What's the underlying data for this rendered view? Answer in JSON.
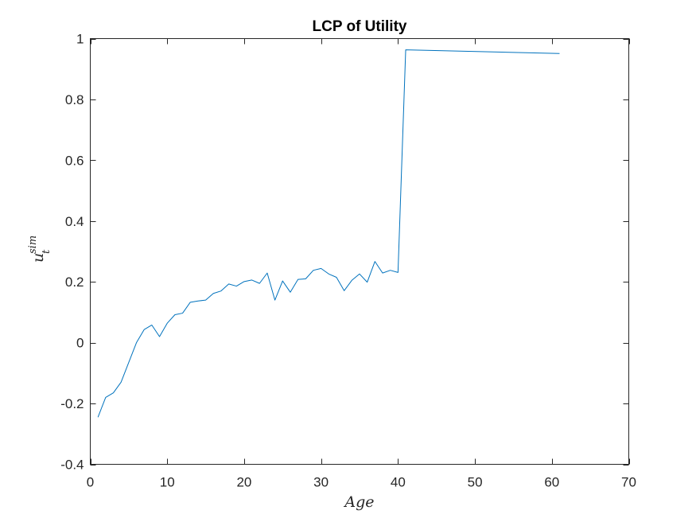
{
  "chart_data": {
    "type": "line",
    "title": "LCP of Utility",
    "xlabel": "Age",
    "ylabel": {
      "base": "u",
      "superscript": "sim",
      "subscript": "t"
    },
    "xlim": [
      0,
      70
    ],
    "ylim": [
      -0.4,
      1
    ],
    "xticks": [
      0,
      10,
      20,
      30,
      40,
      50,
      60,
      70
    ],
    "yticks": [
      -0.4,
      -0.2,
      0,
      0.2,
      0.4,
      0.6,
      0.8,
      1
    ],
    "xtick_labels": [
      "0",
      "10",
      "20",
      "30",
      "40",
      "50",
      "60",
      "70"
    ],
    "ytick_labels": [
      "-0.4",
      "-0.2",
      "0",
      "0.2",
      "0.4",
      "0.6",
      "0.8",
      "1"
    ],
    "grid": false,
    "legend": "none",
    "series": [
      {
        "color": "#0072BD",
        "x": [
          1,
          2,
          3,
          4,
          5,
          6,
          7,
          8,
          9,
          10,
          11,
          12,
          13,
          14,
          15,
          16,
          17,
          18,
          19,
          20,
          21,
          22,
          23,
          24,
          25,
          26,
          27,
          28,
          29,
          30,
          31,
          32,
          33,
          34,
          35,
          36,
          37,
          38,
          39,
          40,
          41,
          61
        ],
        "y": [
          -0.245,
          -0.18,
          -0.165,
          -0.13,
          -0.065,
          0.0,
          0.043,
          0.058,
          0.02,
          0.064,
          0.092,
          0.097,
          0.133,
          0.137,
          0.14,
          0.162,
          0.17,
          0.193,
          0.186,
          0.201,
          0.206,
          0.195,
          0.229,
          0.14,
          0.203,
          0.166,
          0.208,
          0.21,
          0.238,
          0.244,
          0.226,
          0.215,
          0.171,
          0.205,
          0.226,
          0.199,
          0.267,
          0.229,
          0.238,
          0.231,
          0.963,
          0.951
        ]
      }
    ]
  }
}
